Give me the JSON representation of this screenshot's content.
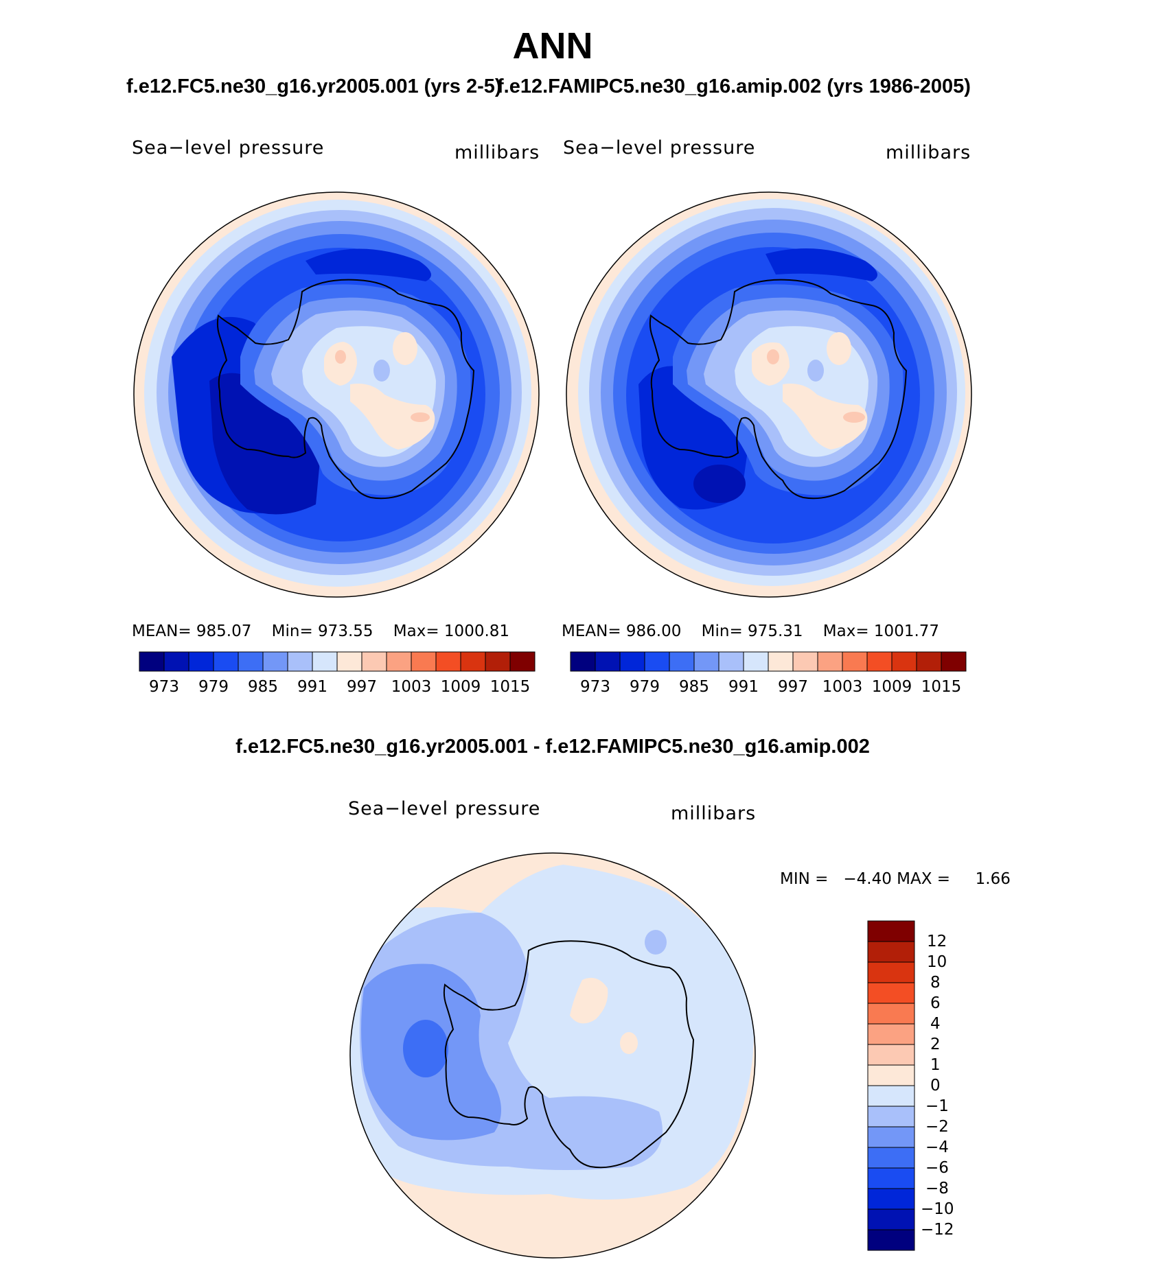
{
  "title": "ANN",
  "panels": [
    {
      "case_title": "f.e12.FC5.ne30_g16.yr2005.001 (yrs 2-5)",
      "variable": "Sea−level pressure",
      "units": "millibars",
      "stats": {
        "mean_label": "MEAN=",
        "mean": "985.07",
        "min_label": "Min=",
        "min": "973.55",
        "max_label": "Max=",
        "max": "1000.81"
      }
    },
    {
      "case_title": "f.e12.FAMIPC5.ne30_g16.amip.002 (yrs 1986-2005)",
      "variable": "Sea−level pressure",
      "units": "millibars",
      "stats": {
        "mean_label": "MEAN=",
        "mean": "986.00",
        "min_label": "Min=",
        "min": "975.31",
        "max_label": "Max=",
        "max": "1001.77"
      }
    }
  ],
  "colorbar": {
    "colors": [
      "#00007f",
      "#0012b3",
      "#0026d9",
      "#1a4cf2",
      "#3d6ef5",
      "#7397f7",
      "#a9c0fa",
      "#d6e6fc",
      "#fde8d8",
      "#fcc9b3",
      "#fba282",
      "#f97a51",
      "#f34e24",
      "#d93410",
      "#b21f08",
      "#7f0000"
    ],
    "tick_labels": [
      "973",
      "979",
      "985",
      "991",
      "997",
      "1003",
      "1009",
      "1015"
    ]
  },
  "difference": {
    "title": "f.e12.FC5.ne30_g16.yr2005.001 - f.e12.FAMIPC5.ne30_g16.amip.002",
    "variable": "Sea−level pressure",
    "units": "millibars",
    "stats": {
      "min_label": "MIN =",
      "min": "−4.40",
      "max_label": "MAX =",
      "max": "1.66"
    },
    "colorbar": {
      "colors": [
        "#7f0000",
        "#b21f08",
        "#d93410",
        "#f34e24",
        "#f97a51",
        "#fba282",
        "#fcc9b3",
        "#fde8d8",
        "#d6e6fc",
        "#a9c0fa",
        "#7397f7",
        "#3d6ef5",
        "#1a4cf2",
        "#0026d9",
        "#0012b3",
        "#00007f"
      ],
      "tick_labels": [
        "12",
        "10",
        "8",
        "6",
        "4",
        "2",
        "1",
        "0",
        "−1",
        "−2",
        "−4",
        "−6",
        "−8",
        "−10",
        "−12"
      ]
    }
  }
}
